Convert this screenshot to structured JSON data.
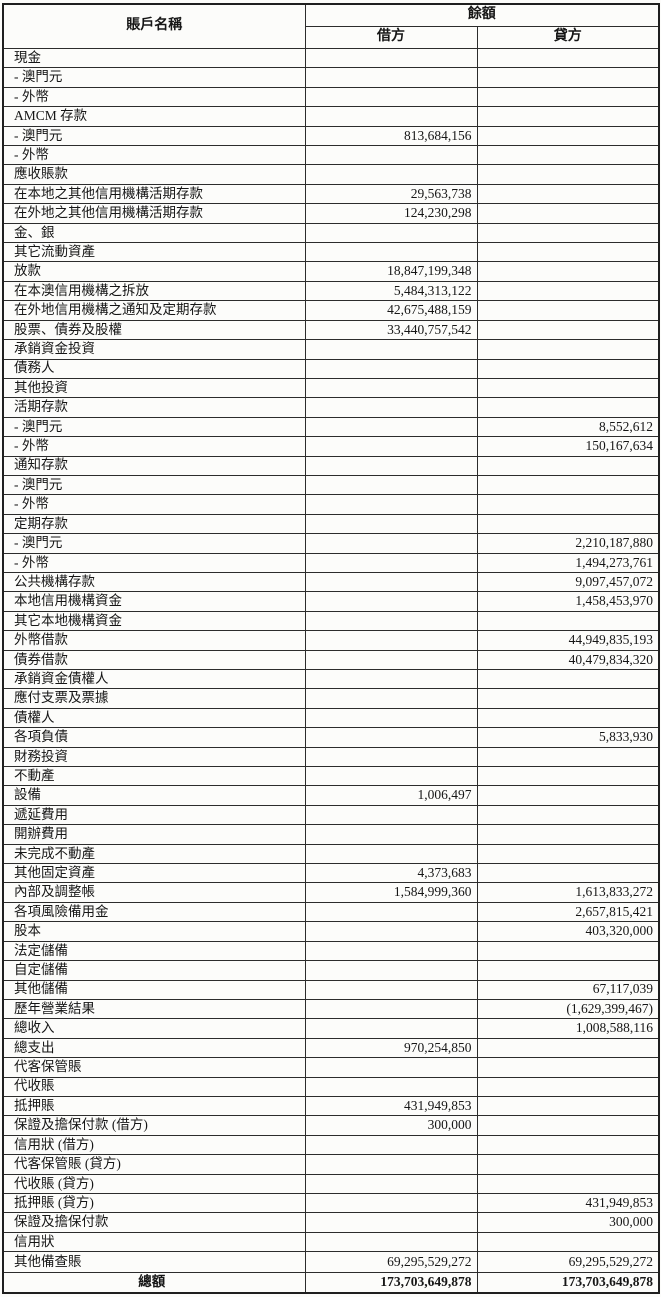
{
  "document": {
    "kind": "trial-balance-table",
    "colors": {
      "paper": "#fcfcfa",
      "ink": "#161616",
      "border": "#2c2c2c"
    }
  },
  "header": {
    "account_name": "賬戶名稱",
    "balance": "餘額",
    "debit": "借方",
    "credit": "貸方"
  },
  "rows": [
    {
      "name": "現金",
      "debit": "",
      "credit": ""
    },
    {
      "name": "- 澳門元",
      "debit": "",
      "credit": ""
    },
    {
      "name": "- 外幣",
      "debit": "",
      "credit": ""
    },
    {
      "name": "AMCM 存款",
      "debit": "",
      "credit": ""
    },
    {
      "name": "- 澳門元",
      "debit": "813,684,156",
      "credit": ""
    },
    {
      "name": "- 外幣",
      "debit": "",
      "credit": ""
    },
    {
      "name": "應收賬款",
      "debit": "",
      "credit": ""
    },
    {
      "name": "在本地之其他信用機構活期存款",
      "debit": "29,563,738",
      "credit": ""
    },
    {
      "name": "在外地之其他信用機構活期存款",
      "debit": "124,230,298",
      "credit": ""
    },
    {
      "name": "金、銀",
      "debit": "",
      "credit": ""
    },
    {
      "name": "其它流動資產",
      "debit": "",
      "credit": ""
    },
    {
      "name": "放款",
      "debit": "18,847,199,348",
      "credit": ""
    },
    {
      "name": "在本澳信用機構之拆放",
      "debit": "5,484,313,122",
      "credit": ""
    },
    {
      "name": "在外地信用機構之通知及定期存款",
      "debit": "42,675,488,159",
      "credit": ""
    },
    {
      "name": "股票、債券及股權",
      "debit": "33,440,757,542",
      "credit": ""
    },
    {
      "name": "承銷資金投資",
      "debit": "",
      "credit": ""
    },
    {
      "name": "債務人",
      "debit": "",
      "credit": ""
    },
    {
      "name": "其他投資",
      "debit": "",
      "credit": ""
    },
    {
      "name": "活期存款",
      "debit": "",
      "credit": ""
    },
    {
      "name": "- 澳門元",
      "debit": "",
      "credit": "8,552,612"
    },
    {
      "name": "- 外幣",
      "debit": "",
      "credit": "150,167,634"
    },
    {
      "name": "通知存款",
      "debit": "",
      "credit": ""
    },
    {
      "name": "- 澳門元",
      "debit": "",
      "credit": ""
    },
    {
      "name": "- 外幣",
      "debit": "",
      "credit": ""
    },
    {
      "name": "定期存款",
      "debit": "",
      "credit": ""
    },
    {
      "name": "- 澳門元",
      "debit": "",
      "credit": "2,210,187,880"
    },
    {
      "name": "- 外幣",
      "debit": "",
      "credit": "1,494,273,761"
    },
    {
      "name": "公共機構存款",
      "debit": "",
      "credit": "9,097,457,072"
    },
    {
      "name": "本地信用機構資金",
      "debit": "",
      "credit": "1,458,453,970"
    },
    {
      "name": "其它本地機構資金",
      "debit": "",
      "credit": ""
    },
    {
      "name": "外幣借款",
      "debit": "",
      "credit": "44,949,835,193"
    },
    {
      "name": "債券借款",
      "debit": "",
      "credit": "40,479,834,320"
    },
    {
      "name": "承銷資金債權人",
      "debit": "",
      "credit": ""
    },
    {
      "name": "應付支票及票據",
      "debit": "",
      "credit": ""
    },
    {
      "name": "債權人",
      "debit": "",
      "credit": ""
    },
    {
      "name": "各項負債",
      "debit": "",
      "credit": "5,833,930"
    },
    {
      "name": "財務投資",
      "debit": "",
      "credit": ""
    },
    {
      "name": "不動產",
      "debit": "",
      "credit": ""
    },
    {
      "name": "設備",
      "debit": "1,006,497",
      "credit": ""
    },
    {
      "name": "遞延費用",
      "debit": "",
      "credit": ""
    },
    {
      "name": "開辦費用",
      "debit": "",
      "credit": ""
    },
    {
      "name": "未完成不動產",
      "debit": "",
      "credit": ""
    },
    {
      "name": "其他固定資產",
      "debit": "4,373,683",
      "credit": ""
    },
    {
      "name": "內部及調整帳",
      "debit": "1,584,999,360",
      "credit": "1,613,833,272"
    },
    {
      "name": "各項風險備用金",
      "debit": "",
      "credit": "2,657,815,421"
    },
    {
      "name": "股本",
      "debit": "",
      "credit": "403,320,000"
    },
    {
      "name": "法定儲備",
      "debit": "",
      "credit": ""
    },
    {
      "name": "自定儲備",
      "debit": "",
      "credit": ""
    },
    {
      "name": "其他儲備",
      "debit": "",
      "credit": "67,117,039"
    },
    {
      "name": "歷年營業結果",
      "debit": "",
      "credit": "(1,629,399,467)"
    },
    {
      "name": "總收入",
      "debit": "",
      "credit": "1,008,588,116"
    },
    {
      "name": "總支出",
      "debit": "970,254,850",
      "credit": ""
    },
    {
      "name": "代客保管賬",
      "debit": "",
      "credit": ""
    },
    {
      "name": "代收賬",
      "debit": "",
      "credit": ""
    },
    {
      "name": "抵押賬",
      "debit": "431,949,853",
      "credit": ""
    },
    {
      "name": "保證及擔保付款 (借方)",
      "debit": "300,000",
      "credit": ""
    },
    {
      "name": "信用狀 (借方)",
      "debit": "",
      "credit": ""
    },
    {
      "name": "代客保管賬 (貸方)",
      "debit": "",
      "credit": ""
    },
    {
      "name": "代收賬 (貸方)",
      "debit": "",
      "credit": ""
    },
    {
      "name": "抵押賬 (貸方)",
      "debit": "",
      "credit": "431,949,853"
    },
    {
      "name": "保證及擔保付款",
      "debit": "",
      "credit": "300,000"
    },
    {
      "name": "信用狀",
      "debit": "",
      "credit": ""
    },
    {
      "name": "其他備查賬",
      "debit": "69,295,529,272",
      "credit": "69,295,529,272"
    }
  ],
  "total": {
    "name": "總額",
    "debit": "173,703,649,878",
    "credit": "173,703,649,878"
  }
}
